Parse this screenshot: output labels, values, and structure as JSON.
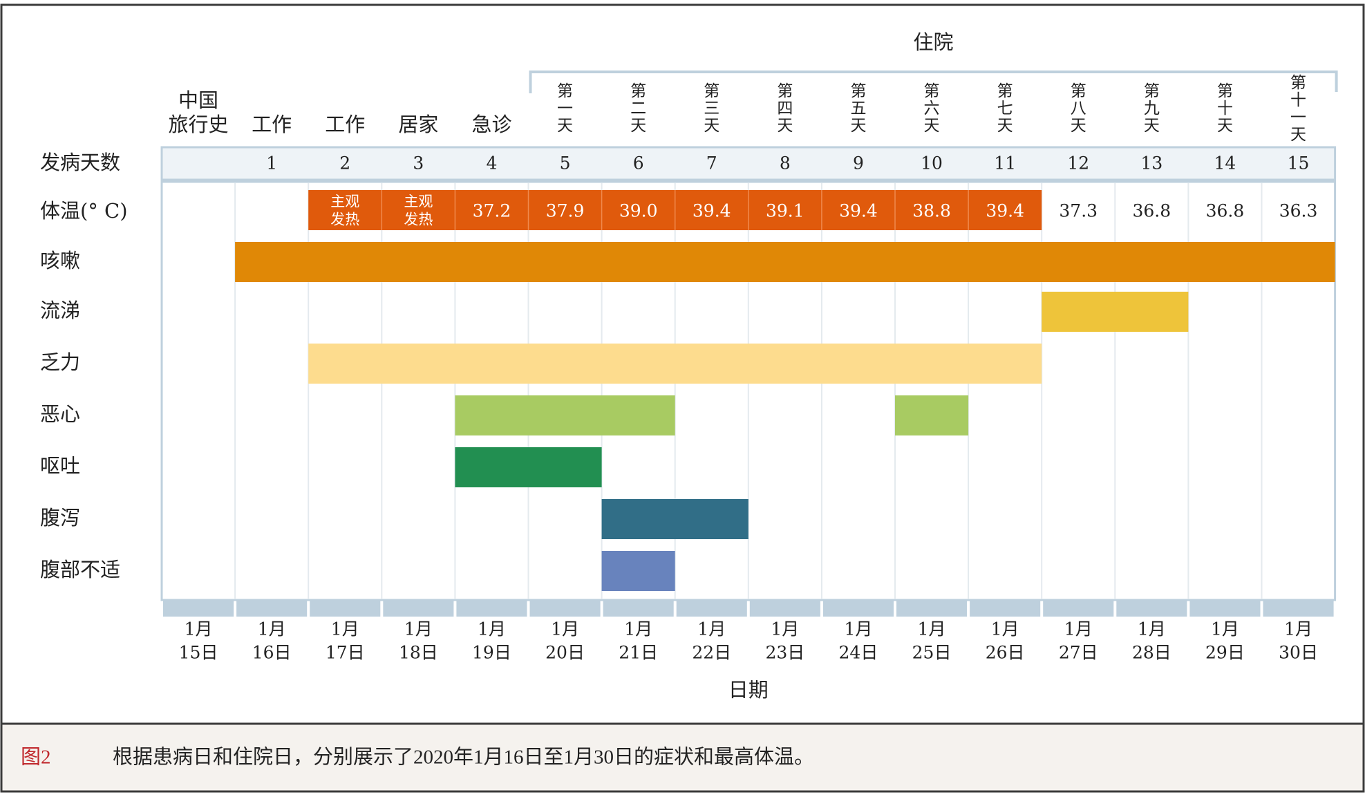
{
  "chart_data": {
    "type": "gantt",
    "title": "",
    "xlabel": "日期",
    "hospital_label": "住院",
    "pre_hospital_labels": [
      {
        "lines": [
          "中国",
          "旅行史"
        ]
      },
      {
        "lines": [
          "工作"
        ]
      },
      {
        "lines": [
          "工作"
        ]
      },
      {
        "lines": [
          "居家"
        ]
      },
      {
        "lines": [
          "急诊"
        ]
      }
    ],
    "hospital_day_labels": [
      [
        "第",
        "一",
        "天"
      ],
      [
        "第",
        "二",
        "天"
      ],
      [
        "第",
        "三",
        "天"
      ],
      [
        "第",
        "四",
        "天"
      ],
      [
        "第",
        "五",
        "天"
      ],
      [
        "第",
        "六",
        "天"
      ],
      [
        "第",
        "七",
        "天"
      ],
      [
        "第",
        "八",
        "天"
      ],
      [
        "第",
        "九",
        "天"
      ],
      [
        "第",
        "十",
        "天"
      ],
      [
        "第",
        "十",
        "一",
        "天"
      ]
    ],
    "illness_day_label": "发病天数",
    "illness_days": [
      "",
      "1",
      "2",
      "3",
      "4",
      "5",
      "6",
      "7",
      "8",
      "9",
      "10",
      "11",
      "12",
      "13",
      "14",
      "15"
    ],
    "dates": [
      [
        "1月",
        "15日"
      ],
      [
        "1月",
        "16日"
      ],
      [
        "1月",
        "17日"
      ],
      [
        "1月",
        "18日"
      ],
      [
        "1月",
        "19日"
      ],
      [
        "1月",
        "20日"
      ],
      [
        "1月",
        "21日"
      ],
      [
        "1月",
        "22日"
      ],
      [
        "1月",
        "23日"
      ],
      [
        "1月",
        "24日"
      ],
      [
        "1月",
        "25日"
      ],
      [
        "1月",
        "26日"
      ],
      [
        "1月",
        "27日"
      ],
      [
        "1月",
        "28日"
      ],
      [
        "1月",
        "29日"
      ],
      [
        "1月",
        "30日"
      ]
    ],
    "temperature": {
      "label": "体温(° C)",
      "values": [
        null,
        null,
        {
          "lines": [
            "主观",
            "发热"
          ],
          "fever": true
        },
        {
          "lines": [
            "主观",
            "发热"
          ],
          "fever": true
        },
        {
          "text": "37.2",
          "fever": true
        },
        {
          "text": "37.9",
          "fever": true
        },
        {
          "text": "39.0",
          "fever": true
        },
        {
          "text": "39.4",
          "fever": true
        },
        {
          "text": "39.1",
          "fever": true
        },
        {
          "text": "39.4",
          "fever": true
        },
        {
          "text": "38.8",
          "fever": true
        },
        {
          "text": "39.4",
          "fever": true
        },
        {
          "text": "37.3",
          "fever": false
        },
        {
          "text": "36.8",
          "fever": false
        },
        {
          "text": "36.8",
          "fever": false
        },
        {
          "text": "36.3",
          "fever": false
        }
      ],
      "fever_color": "#e05a0c"
    },
    "symptoms": [
      {
        "name": "咳嗽",
        "color": "#e08806",
        "ranges": [
          [
            1,
            15
          ]
        ]
      },
      {
        "name": "流涕",
        "color": "#eec43a",
        "ranges": [
          [
            12,
            13
          ]
        ]
      },
      {
        "name": "乏力",
        "color": "#fddc8e",
        "ranges": [
          [
            2,
            11
          ]
        ]
      },
      {
        "name": "恶心",
        "color": "#a8cb62",
        "ranges": [
          [
            4,
            6
          ],
          [
            10,
            10
          ]
        ]
      },
      {
        "name": "呕吐",
        "color": "#228f51",
        "ranges": [
          [
            4,
            5
          ]
        ]
      },
      {
        "name": "腹泻",
        "color": "#316e87",
        "ranges": [
          [
            6,
            7
          ]
        ]
      },
      {
        "name": "腹部不适",
        "color": "#6883bd",
        "ranges": [
          [
            6,
            6
          ]
        ]
      }
    ],
    "colors": {
      "header_band": "#eef3f7",
      "border": "#bed0dd",
      "grid": "#e4eaee",
      "caption_bg": "#f5f2ee"
    }
  },
  "caption": {
    "figure_label": "图2",
    "figure_color": "#c0282c",
    "text": "根据患病日和住院日，分别展示了2020年1月16日至1月30日的症状和最高体温。"
  }
}
